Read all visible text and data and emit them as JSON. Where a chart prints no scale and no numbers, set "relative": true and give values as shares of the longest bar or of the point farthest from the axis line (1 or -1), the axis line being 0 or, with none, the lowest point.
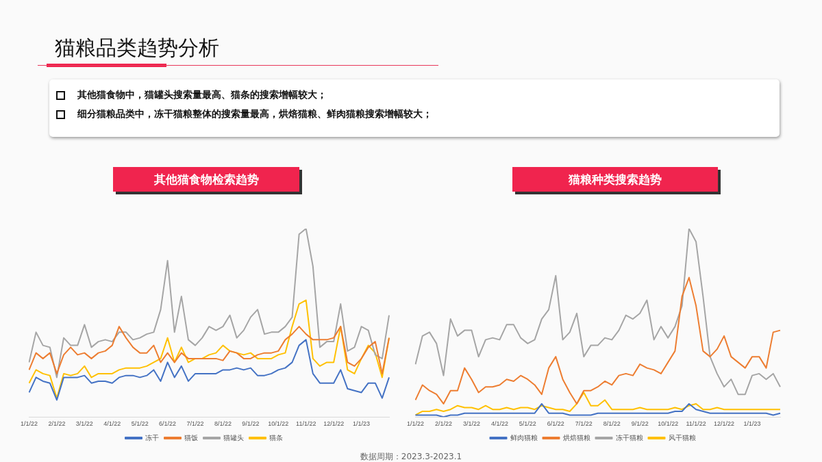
{
  "chart_data": [
    {
      "type": "other",
      "title": "猫粮品类趋势分析",
      "annotations": [
        "其他猫食物中，猫罐头搜索量最高、猫条的搜索增幅较大；",
        "细分猫粮品类中，冻干猫粮整体的搜索量最高，烘焙猫粮、鲜肉猫粮搜索增幅较大；"
      ]
    },
    {
      "type": "line",
      "title": "其他猫食物检索趋势",
      "relative": true,
      "legend": "bottom",
      "grid": false,
      "marker": "none",
      "line_style": "solid",
      "tick_labels": "x",
      "categories": [
        "1/1/22",
        null,
        null,
        null,
        "2/1/22",
        null,
        null,
        null,
        "3/1/22",
        null,
        null,
        null,
        "4/1/22",
        null,
        null,
        null,
        "5/1/22",
        null,
        null,
        null,
        "6/1/22",
        null,
        null,
        null,
        "7/1/22",
        null,
        null,
        null,
        "8/1/22",
        null,
        null,
        null,
        "9/1/22",
        null,
        null,
        null,
        "10/1/22",
        null,
        null,
        null,
        "11/1/22",
        null,
        null,
        null,
        "12/1/22",
        null,
        null,
        null,
        "1/1/23",
        null,
        null,
        null,
        null
      ],
      "series": [
        {
          "name": "冻干",
          "color": "#4472c4",
          "values": [
            0.13,
            0.21,
            0.19,
            0.18,
            0.09,
            0.21,
            0.21,
            0.21,
            0.22,
            0.18,
            0.19,
            0.19,
            0.18,
            0.21,
            0.22,
            0.22,
            0.21,
            0.22,
            0.25,
            0.19,
            0.29,
            0.21,
            0.27,
            0.19,
            0.23,
            0.23,
            0.23,
            0.23,
            0.25,
            0.25,
            0.26,
            0.25,
            0.26,
            0.22,
            0.22,
            0.23,
            0.25,
            0.26,
            0.29,
            0.38,
            0.41,
            0.23,
            0.18,
            0.18,
            0.18,
            0.25,
            0.15,
            0.14,
            0.13,
            0.18,
            0.18,
            0.1,
            0.21
          ]
        },
        {
          "name": "猫饭",
          "color": "#ed7d31",
          "values": [
            0.25,
            0.34,
            0.31,
            0.34,
            0.23,
            0.33,
            0.37,
            0.33,
            0.34,
            0.31,
            0.34,
            0.35,
            0.38,
            0.48,
            0.42,
            0.37,
            0.34,
            0.34,
            0.38,
            0.29,
            0.34,
            0.29,
            0.34,
            0.31,
            0.31,
            0.31,
            0.31,
            0.31,
            0.3,
            0.35,
            0.34,
            0.31,
            0.31,
            0.33,
            0.34,
            0.34,
            0.35,
            0.41,
            0.44,
            0.48,
            0.44,
            0.41,
            0.41,
            0.41,
            0.42,
            0.48,
            0.29,
            0.27,
            0.31,
            0.37,
            0.4,
            0.23,
            0.42
          ]
        },
        {
          "name": "猫罐头",
          "color": "#a5a5a5",
          "values": [
            0.29,
            0.45,
            0.38,
            0.37,
            0.21,
            0.42,
            0.38,
            0.38,
            0.49,
            0.37,
            0.4,
            0.41,
            0.4,
            0.45,
            0.45,
            0.41,
            0.42,
            0.44,
            0.45,
            0.57,
            0.83,
            0.45,
            0.64,
            0.41,
            0.38,
            0.42,
            0.48,
            0.46,
            0.48,
            0.54,
            0.42,
            0.46,
            0.53,
            0.57,
            0.44,
            0.45,
            0.45,
            0.48,
            0.53,
            0.97,
            1,
            0.8,
            0.37,
            0.4,
            0.4,
            0.6,
            0.35,
            0.37,
            0.48,
            0.46,
            0.33,
            0.31,
            0.54
          ]
        },
        {
          "name": "猫条",
          "color": "#ffc000",
          "values": [
            0.18,
            0.25,
            0.23,
            0.22,
            0.1,
            0.23,
            0.22,
            0.23,
            0.27,
            0.21,
            0.23,
            0.23,
            0.23,
            0.25,
            0.26,
            0.26,
            0.26,
            0.27,
            0.29,
            0.31,
            0.42,
            0.29,
            0.37,
            0.29,
            0.31,
            0.31,
            0.33,
            0.34,
            0.38,
            0.35,
            0.34,
            0.33,
            0.34,
            0.31,
            0.31,
            0.31,
            0.33,
            0.34,
            0.48,
            0.6,
            0.62,
            0.31,
            0.27,
            0.29,
            0.29,
            0.48,
            0.25,
            0.23,
            0.31,
            0.38,
            0.34,
            0.21,
            0.42
          ]
        }
      ]
    },
    {
      "type": "line",
      "title": "猫粮种类搜索趋势",
      "relative": true,
      "legend": "bottom",
      "grid": false,
      "marker": "none",
      "line_style": "solid",
      "tick_labels": "x",
      "annotations": [
        "数据周期：2023.3-2023.1"
      ],
      "categories": [
        "1/1/22",
        null,
        null,
        null,
        "2/1/22",
        null,
        null,
        null,
        "3/1/22",
        null,
        null,
        null,
        "4/1/22",
        null,
        null,
        null,
        "5/1/22",
        null,
        null,
        null,
        "6/1/22",
        null,
        null,
        null,
        "7/1/22",
        null,
        null,
        null,
        "8/1/22",
        null,
        null,
        null,
        "9/1/22",
        null,
        null,
        null,
        "10/1/22",
        null,
        null,
        null,
        "11/1/22",
        null,
        null,
        null,
        "12/1/22",
        null,
        null,
        null,
        "1/1/23",
        null,
        null,
        null,
        null
      ],
      "series": [
        {
          "name": "鲜肉猫粮",
          "color": "#4472c4",
          "values": [
            0.01,
            0.01,
            0.01,
            0.01,
            0,
            0.01,
            0.01,
            0.02,
            0.02,
            0.02,
            0.02,
            0.02,
            0.02,
            0.02,
            0.02,
            0.02,
            0.02,
            0.02,
            0.07,
            0.02,
            0.02,
            0.02,
            0.01,
            0.01,
            0.01,
            0.01,
            0.02,
            0.02,
            0.02,
            0.02,
            0.02,
            0.02,
            0.02,
            0.02,
            0.02,
            0.02,
            0.02,
            0.03,
            0.03,
            0.07,
            0.04,
            0.03,
            0.02,
            0.02,
            0.02,
            0.02,
            0.02,
            0.02,
            0.02,
            0.02,
            0.02,
            0.01,
            0.02
          ]
        },
        {
          "name": "烘焙猫粮",
          "color": "#ed7d31",
          "values": [
            0.09,
            0.17,
            0.14,
            0.12,
            0.07,
            0.14,
            0.14,
            0.26,
            0.2,
            0.13,
            0.16,
            0.16,
            0.17,
            0.2,
            0.19,
            0.22,
            0.2,
            0.17,
            0.12,
            0.26,
            0.32,
            0.2,
            0.13,
            0.07,
            0.14,
            0.14,
            0.16,
            0.19,
            0.17,
            0.22,
            0.23,
            0.22,
            0.28,
            0.26,
            0.25,
            0.23,
            0.29,
            0.35,
            0.64,
            0.74,
            0.59,
            0.35,
            0.32,
            0.36,
            0.43,
            0.32,
            0.29,
            0.26,
            0.32,
            0.32,
            0.26,
            0.45,
            0.46
          ]
        },
        {
          "name": "冻干猫粮",
          "color": "#a5a5a5",
          "values": [
            0.28,
            0.43,
            0.45,
            0.39,
            0.22,
            0.52,
            0.43,
            0.46,
            0.46,
            0.32,
            0.41,
            0.42,
            0.41,
            0.49,
            0.49,
            0.42,
            0.39,
            0.41,
            0.52,
            0.57,
            0.75,
            0.41,
            0.45,
            0.55,
            0.32,
            0.38,
            0.38,
            0.42,
            0.41,
            0.46,
            0.54,
            0.52,
            0.55,
            0.62,
            0.41,
            0.48,
            0.42,
            0.48,
            0.59,
            1,
            0.93,
            0.64,
            0.32,
            0.23,
            0.16,
            0.2,
            0.12,
            0.12,
            0.22,
            0.23,
            0.2,
            0.23,
            0.16
          ]
        },
        {
          "name": "风干猫粮",
          "color": "#ffc000",
          "values": [
            0.01,
            0.03,
            0.03,
            0.04,
            0.03,
            0.04,
            0.06,
            0.05,
            0.05,
            0.04,
            0.06,
            0.04,
            0.04,
            0.05,
            0.04,
            0.05,
            0.05,
            0.04,
            0.06,
            0.05,
            0.04,
            0.04,
            0.03,
            0.07,
            0.13,
            0.06,
            0.06,
            0.09,
            0.04,
            0.04,
            0.04,
            0.04,
            0.05,
            0.04,
            0.04,
            0.04,
            0.04,
            0.05,
            0.04,
            0.06,
            0.07,
            0.04,
            0.04,
            0.05,
            0.04,
            0.04,
            0.04,
            0.04,
            0.04,
            0.04,
            0.04,
            0.04,
            0.04
          ]
        }
      ]
    }
  ]
}
